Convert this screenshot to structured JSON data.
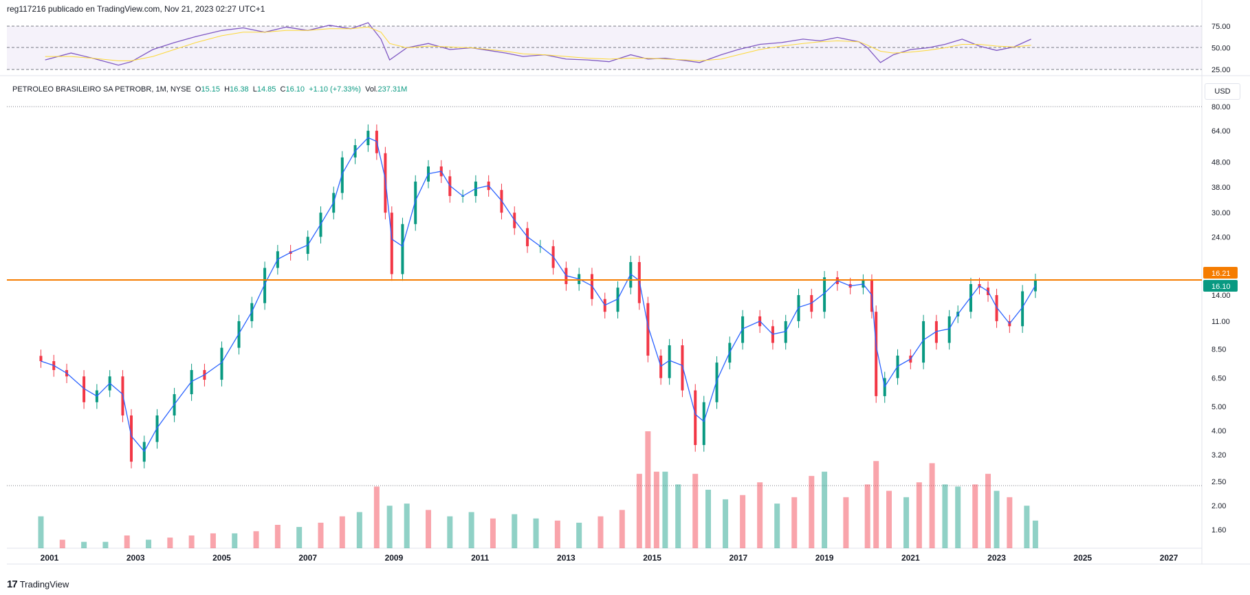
{
  "header": {
    "text": "reg117216 publicado en TradingView.com, Nov 21, 2023 02:27 UTC+1"
  },
  "footer": {
    "brand": "TradingView",
    "logo": "17"
  },
  "legend": {
    "symbol": "PETROLEO BRASILEIRO SA PETROBR, 1M, NYSE",
    "o_label": "O",
    "o": "15.15",
    "h_label": "H",
    "h": "16.38",
    "l_label": "L",
    "l": "14.85",
    "c_label": "C",
    "c": "16.10",
    "change": "+1.10 (+7.33%)",
    "vol_label": "Vol.",
    "vol": "237.31M"
  },
  "currency": "USD",
  "colors": {
    "up": "#089981",
    "down": "#f23645",
    "ma": "#2962ff",
    "rsi": "#7e57c2",
    "rsi_ma": "#fdd835",
    "hline": "#f57c00"
  },
  "chart_data": [
    {
      "type": "line",
      "panel": "rsi",
      "y_ticks": [
        "75.00",
        "50.00",
        "25.00"
      ],
      "ylim": [
        25,
        75
      ],
      "x": [
        2000.9,
        2001.5,
        2002.0,
        2002.6,
        2002.9,
        2003.4,
        2003.9,
        2004.4,
        2005.0,
        2005.5,
        2006.0,
        2006.5,
        2007.0,
        2007.5,
        2008.0,
        2008.4,
        2008.7,
        2008.9,
        2009.3,
        2009.8,
        2010.3,
        2010.8,
        2011.2,
        2011.6,
        2012.0,
        2012.5,
        2013.0,
        2013.5,
        2014.0,
        2014.5,
        2014.9,
        2015.3,
        2015.8,
        2016.1,
        2016.6,
        2017.0,
        2017.5,
        2018.0,
        2018.5,
        2018.9,
        2019.3,
        2019.8,
        2020.0,
        2020.3,
        2020.6,
        2021.0,
        2021.4,
        2021.8,
        2022.2,
        2022.6,
        2023.0,
        2023.4,
        2023.8
      ],
      "series": [
        {
          "values": [
            36,
            44,
            38,
            30,
            34,
            48,
            56,
            63,
            70,
            73,
            68,
            74,
            70,
            76,
            72,
            79,
            60,
            36,
            50,
            55,
            48,
            50,
            47,
            44,
            40,
            42,
            37,
            36,
            34,
            42,
            37,
            38,
            35,
            33,
            42,
            48,
            54,
            56,
            60,
            58,
            62,
            57,
            50,
            33,
            42,
            48,
            50,
            54,
            60,
            52,
            47,
            51,
            60
          ]
        },
        {
          "values": [
            40,
            40,
            38,
            35,
            35,
            40,
            48,
            56,
            64,
            68,
            68,
            70,
            70,
            72,
            72,
            74,
            68,
            55,
            50,
            52,
            51,
            50,
            48,
            46,
            43,
            42,
            40,
            38,
            37,
            38,
            38,
            37,
            36,
            35,
            37,
            42,
            48,
            52,
            55,
            57,
            58,
            57,
            53,
            46,
            44,
            45,
            47,
            50,
            54,
            54,
            52,
            51,
            53
          ]
        }
      ]
    },
    {
      "type": "candlestick",
      "panel": "price",
      "y_ticks": [
        "80.00",
        "64.00",
        "48.00",
        "38.00",
        "30.00",
        "24.00",
        "14.00",
        "11.00",
        "8.50",
        "6.50",
        "5.00",
        "4.00",
        "3.20",
        "2.50",
        "2.00",
        "1.60"
      ],
      "y_scale": "log",
      "x_ticks": [
        "2001",
        "2003",
        "2005",
        "2007",
        "2009",
        "2011",
        "2013",
        "2015",
        "2017",
        "2019",
        "2021",
        "2023",
        "2025",
        "2027"
      ],
      "hline_value": 16.1,
      "price_labels": [
        "16.21",
        "16.10"
      ],
      "x": [
        2000.8,
        2001.1,
        2001.4,
        2001.8,
        2002.1,
        2002.4,
        2002.7,
        2002.9,
        2003.2,
        2003.5,
        2003.9,
        2004.3,
        2004.6,
        2005.0,
        2005.4,
        2005.7,
        2006.0,
        2006.3,
        2006.6,
        2007.0,
        2007.3,
        2007.6,
        2007.8,
        2008.1,
        2008.4,
        2008.6,
        2008.8,
        2008.95,
        2009.2,
        2009.5,
        2009.8,
        2010.1,
        2010.3,
        2010.6,
        2010.9,
        2011.2,
        2011.5,
        2011.8,
        2012.1,
        2012.4,
        2012.7,
        2013.0,
        2013.3,
        2013.6,
        2013.9,
        2014.2,
        2014.5,
        2014.7,
        2014.9,
        2015.2,
        2015.4,
        2015.7,
        2016.0,
        2016.2,
        2016.5,
        2016.8,
        2017.1,
        2017.5,
        2017.8,
        2018.1,
        2018.4,
        2018.7,
        2019.0,
        2019.3,
        2019.6,
        2019.9,
        2020.1,
        2020.2,
        2020.4,
        2020.7,
        2021.0,
        2021.3,
        2021.6,
        2021.9,
        2022.1,
        2022.4,
        2022.6,
        2022.8,
        2023.0,
        2023.3,
        2023.6,
        2023.9
      ],
      "values": [
        7.6,
        7.0,
        6.6,
        5.2,
        5.8,
        6.6,
        4.6,
        3.0,
        3.6,
        4.6,
        5.6,
        7.0,
        6.4,
        8.6,
        11.0,
        13.0,
        18.0,
        21.0,
        20.5,
        24.0,
        30.0,
        36.0,
        50.0,
        56.0,
        64.0,
        52.0,
        30.0,
        17.0,
        27.0,
        40.0,
        46.0,
        42.0,
        35.0,
        35.0,
        40.0,
        37.0,
        30.0,
        26.0,
        22.0,
        22.0,
        18.0,
        15.5,
        17.0,
        13.5,
        12.0,
        15.0,
        19.0,
        13.0,
        8.0,
        6.5,
        8.8,
        5.8,
        3.5,
        5.2,
        7.5,
        9.0,
        11.5,
        10.5,
        9.0,
        11.0,
        14.0,
        12.0,
        16.5,
        15.5,
        15.0,
        16.0,
        12.0,
        5.5,
        6.5,
        8.0,
        7.5,
        11.0,
        9.0,
        11.5,
        12.0,
        15.5,
        15.0,
        14.0,
        11.0,
        10.5,
        14.5,
        16.1
      ]
    },
    {
      "type": "bar",
      "panel": "volume",
      "x": [
        2000.8,
        2001.3,
        2001.8,
        2002.3,
        2002.8,
        2003.3,
        2003.8,
        2004.3,
        2004.8,
        2005.3,
        2005.8,
        2006.3,
        2006.8,
        2007.3,
        2007.8,
        2008.2,
        2008.6,
        2008.9,
        2009.3,
        2009.8,
        2010.3,
        2010.8,
        2011.3,
        2011.8,
        2012.3,
        2012.8,
        2013.3,
        2013.8,
        2014.3,
        2014.7,
        2014.9,
        2015.1,
        2015.3,
        2015.6,
        2016.0,
        2016.3,
        2016.7,
        2017.1,
        2017.5,
        2017.9,
        2018.3,
        2018.7,
        2019.0,
        2019.5,
        2020.0,
        2020.2,
        2020.5,
        2020.9,
        2021.2,
        2021.5,
        2021.8,
        2022.1,
        2022.5,
        2022.8,
        2023.0,
        2023.3,
        2023.7,
        2023.9
      ],
      "values": [
        30,
        8,
        6,
        6,
        12,
        8,
        10,
        12,
        14,
        14,
        16,
        22,
        20,
        24,
        30,
        34,
        58,
        40,
        42,
        36,
        30,
        34,
        28,
        32,
        28,
        26,
        24,
        30,
        36,
        70,
        110,
        72,
        72,
        60,
        70,
        55,
        46,
        50,
        62,
        42,
        48,
        68,
        72,
        48,
        60,
        82,
        54,
        48,
        62,
        80,
        60,
        58,
        60,
        70,
        54,
        48,
        40,
        26
      ]
    }
  ]
}
